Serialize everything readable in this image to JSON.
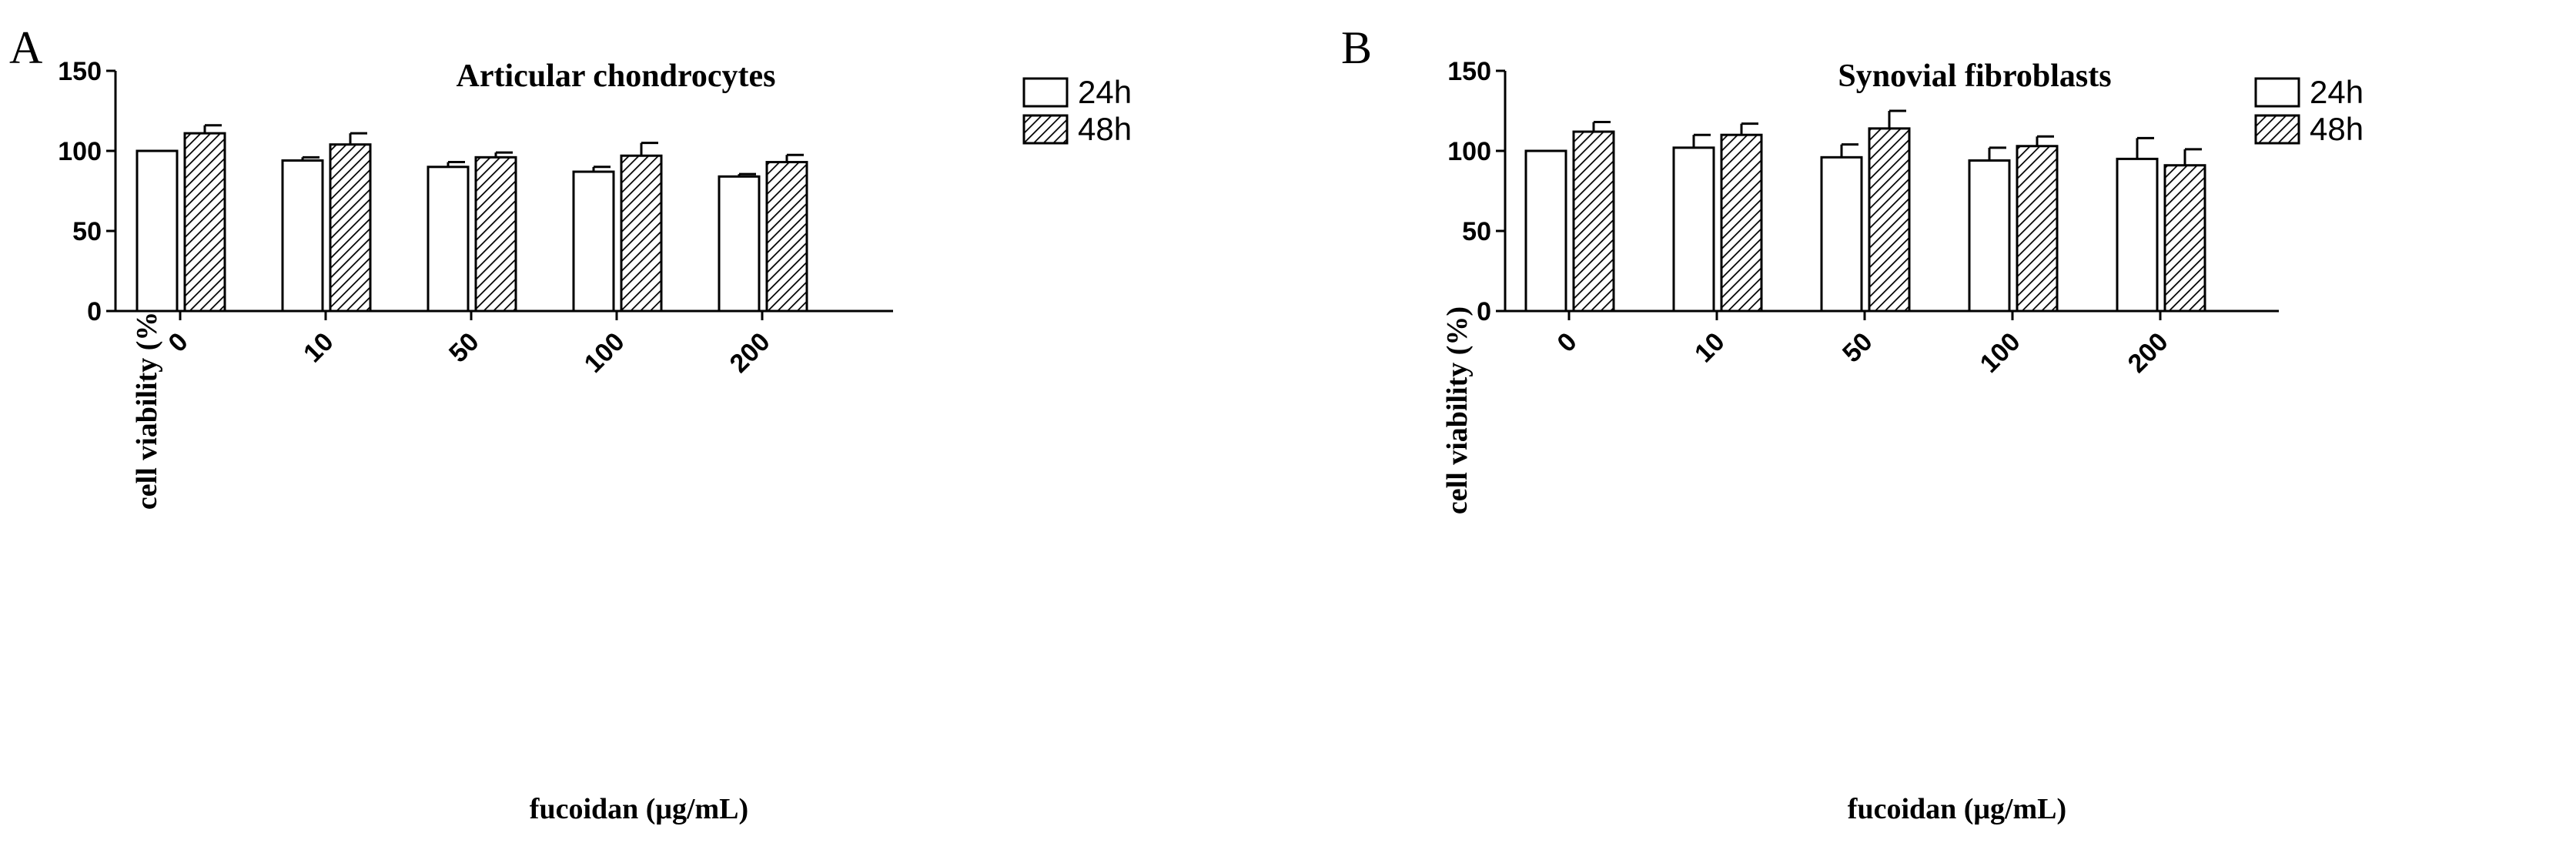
{
  "panels": [
    {
      "letter": "A",
      "chart_data": {
        "type": "bar",
        "title": "Articular chondrocytes",
        "xlabel": "fucoidan (μg/mL)",
        "ylabel": "cell viability (%)",
        "categories": [
          "0",
          "10",
          "50",
          "100",
          "200"
        ],
        "ylim": [
          0,
          150
        ],
        "yticks": [
          0,
          50,
          100,
          150
        ],
        "grid": false,
        "legend_position": "top-right",
        "series": [
          {
            "name": "24h",
            "pattern": "open",
            "values": [
              100,
              94,
              90,
              87,
              84
            ],
            "errors": [
              0,
              2,
              3,
              3,
              1.5
            ]
          },
          {
            "name": "48h",
            "pattern": "hatched",
            "values": [
              111,
              104,
              96,
              97,
              93
            ],
            "errors": [
              5,
              7,
              3,
              8,
              4.5
            ]
          }
        ]
      }
    },
    {
      "letter": "B",
      "chart_data": {
        "type": "bar",
        "title": "Synovial fibroblasts",
        "xlabel": "fucoidan (μg/mL)",
        "ylabel": "cell viability (%)",
        "categories": [
          "0",
          "10",
          "50",
          "100",
          "200"
        ],
        "ylim": [
          0,
          150
        ],
        "yticks": [
          0,
          50,
          100,
          150
        ],
        "grid": false,
        "legend_position": "top-right",
        "series": [
          {
            "name": "24h",
            "pattern": "open",
            "values": [
              100,
              102,
              96,
              94,
              95
            ],
            "errors": [
              0,
              8,
              8,
              8,
              13
            ]
          },
          {
            "name": "48h",
            "pattern": "hatched",
            "values": [
              112,
              110,
              114,
              103,
              91
            ],
            "errors": [
              6,
              7,
              11,
              6,
              10
            ]
          }
        ]
      }
    }
  ]
}
